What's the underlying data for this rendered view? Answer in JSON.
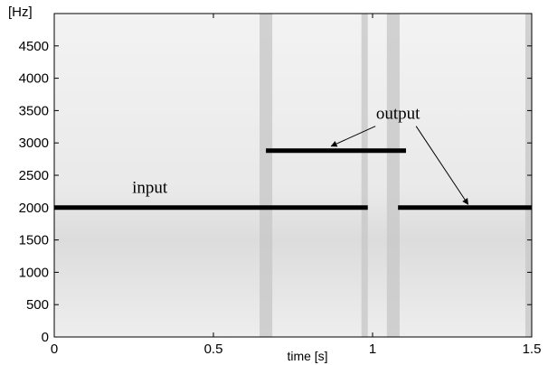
{
  "chart_data": {
    "type": "heatmap",
    "x": {
      "label": "time [s]",
      "range": [
        0,
        1.5
      ],
      "ticks": [
        0,
        0.5,
        1,
        1.5
      ],
      "tick_labels": [
        "0",
        "0.5",
        "1",
        "1.5"
      ]
    },
    "y": {
      "unit_label": "[Hz]",
      "range": [
        0,
        5000
      ],
      "ticks": [
        0,
        500,
        1000,
        1500,
        2000,
        2500,
        3000,
        3500,
        4000,
        4500
      ],
      "tick_labels": [
        "0",
        "500",
        "1000",
        "1500",
        "2000",
        "2500",
        "3000",
        "3500",
        "4000",
        "4500"
      ]
    },
    "series": [
      {
        "name": "input",
        "segments": [
          {
            "x": [
              0.0,
              0.985
            ],
            "y": 2000
          }
        ]
      },
      {
        "name": "output",
        "segments": [
          {
            "x": [
              0.665,
              1.105
            ],
            "y": 2880
          },
          {
            "x": [
              1.08,
              1.5
            ],
            "y": 2000
          }
        ]
      }
    ],
    "bands": [
      {
        "x": [
          0.645,
          0.685
        ]
      },
      {
        "x": [
          0.965,
          0.985
        ]
      },
      {
        "x": [
          1.045,
          1.085
        ]
      },
      {
        "x": [
          1.48,
          1.5
        ]
      }
    ],
    "annotations": [
      {
        "text": "input",
        "x": 0.3,
        "y": 2230
      },
      {
        "text": "output",
        "x": 1.08,
        "y": 3370,
        "arrows_to": [
          {
            "x": 0.87,
            "y": 2950
          },
          {
            "x": 1.3,
            "y": 2050
          }
        ]
      }
    ]
  }
}
